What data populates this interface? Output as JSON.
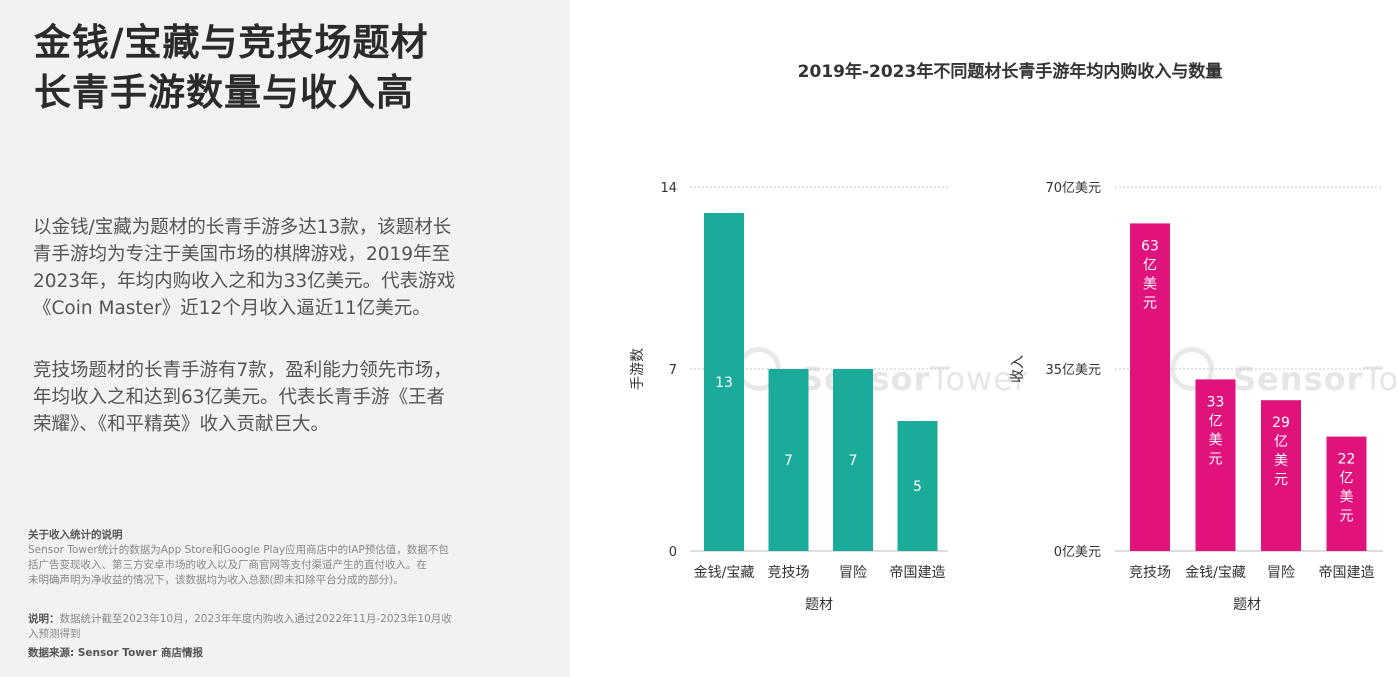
{
  "left": {
    "headline_line1": "金钱/宝藏与竞技场题材",
    "headline_line2": "长青手游数量与收入高",
    "para1_lines": [
      "以金钱/宝藏为题材的长青手游多达13款，该题材长",
      "青手游均为专注于美国市场的棋牌游戏，2019年至",
      "2023年，年均内购收入之和为33亿美元。代表游戏",
      "《Coin Master》近12个月收入逼近11亿美元。"
    ],
    "para2_lines": [
      "竞技场题材的长青手游有7款，盈利能力领先市场，",
      "年均收入之和达到63亿美元。代表长青手游《王者",
      "荣耀》、《和平精英》收入贡献巨大。"
    ],
    "note_title": "关于收入统计的说明",
    "note_lines": [
      "Sensor Tower统计的数据为App Store和Google Play应用商店中的IAP预估值，数据不包",
      "括广告变现收入、第三方安卓市场的收入以及厂商官网等支付渠道产生的直付收入。在",
      "未明确声明为净收益的情况下，该数据均为收入总额(即未扣除平台分成的部分)。"
    ],
    "explain_label": "说明：",
    "explain_lines": [
      "数据统计截至2023年10月，2023年年度内购收入通过2022年11月-2023年10月收",
      "入预测得到"
    ],
    "source": "数据来源: Sensor Tower 商店情报"
  },
  "watermark": {
    "brand_a": "Sensor",
    "brand_b": "Tower"
  },
  "chart_data": [
    {
      "type": "bar",
      "title": "2019年-2023年不同题材长青手游年均内购收入与数量",
      "xlabel": "题材",
      "ylabel": "手游数",
      "categories": [
        "金钱/宝藏",
        "竞技场",
        "冒险",
        "帝国建造"
      ],
      "values": [
        13,
        7,
        7,
        5
      ],
      "data_labels": [
        "13",
        "7",
        "7",
        "5"
      ],
      "yticks": [
        0,
        7,
        14
      ],
      "ytick_labels": [
        "0",
        "7",
        "14"
      ],
      "ylim": [
        0,
        14
      ],
      "color": "#1aab9b",
      "grid": true
    },
    {
      "type": "bar",
      "xlabel": "题材",
      "ylabel": "收入",
      "categories": [
        "竞技场",
        "金钱/宝藏",
        "冒险",
        "帝国建造"
      ],
      "values": [
        63,
        33,
        29,
        22
      ],
      "data_labels": [
        "63亿美元",
        "33亿美元",
        "29亿美元",
        "22亿美元"
      ],
      "yticks": [
        0,
        35,
        70
      ],
      "ytick_labels": [
        "0亿美元",
        "35亿美元",
        "70亿美元"
      ],
      "ylim": [
        0,
        70
      ],
      "color": "#e0137d",
      "grid": true
    }
  ]
}
